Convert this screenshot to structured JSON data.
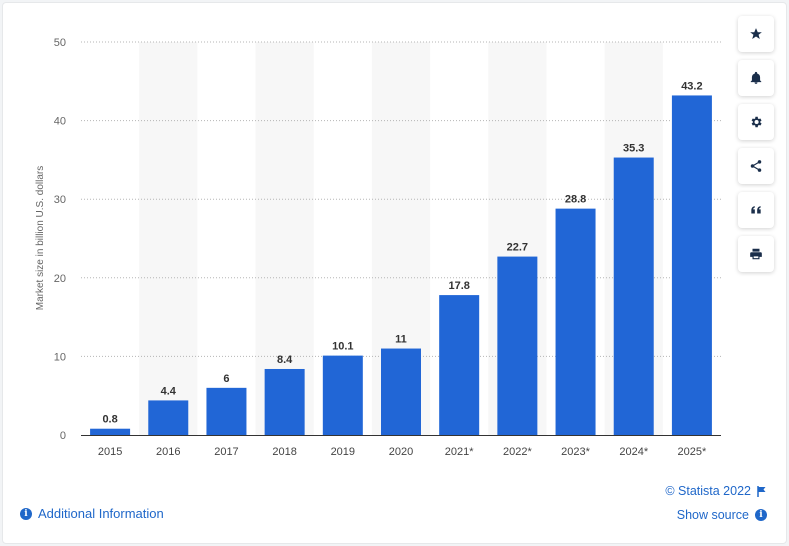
{
  "chart_data": {
    "type": "bar",
    "categories": [
      "2015",
      "2016",
      "2017",
      "2018",
      "2019",
      "2020",
      "2021*",
      "2022*",
      "2023*",
      "2024*",
      "2025*"
    ],
    "values": [
      0.8,
      4.4,
      6,
      8.4,
      10.1,
      11,
      17.8,
      22.7,
      28.8,
      35.3,
      43.2
    ],
    "value_labels": [
      "0.8",
      "4.4",
      "6",
      "8.4",
      "10.1",
      "11",
      "17.8",
      "22.7",
      "28.8",
      "35.3",
      "43.2"
    ],
    "title": "",
    "xlabel": "",
    "ylabel": "Market size in billion U.S. dollars",
    "ylim": [
      0,
      50
    ],
    "yticks": [
      0,
      10,
      20,
      30,
      40,
      50
    ],
    "grid": true,
    "bar_color": "#2166d6",
    "alt_band_color": "#f7f7f7"
  },
  "sidebar": {
    "buttons": [
      {
        "name": "favorite-button",
        "icon": "star-icon"
      },
      {
        "name": "notification-button",
        "icon": "bell-icon"
      },
      {
        "name": "settings-button",
        "icon": "gear-icon"
      },
      {
        "name": "share-button",
        "icon": "share-icon"
      },
      {
        "name": "cite-button",
        "icon": "quote-icon"
      },
      {
        "name": "print-button",
        "icon": "printer-icon"
      }
    ]
  },
  "footer": {
    "additional_info": "Additional Information",
    "copyright": "© Statista 2022",
    "show_source": "Show source"
  },
  "colors": {
    "accent": "#1f67c9",
    "axis_text": "#666666"
  }
}
